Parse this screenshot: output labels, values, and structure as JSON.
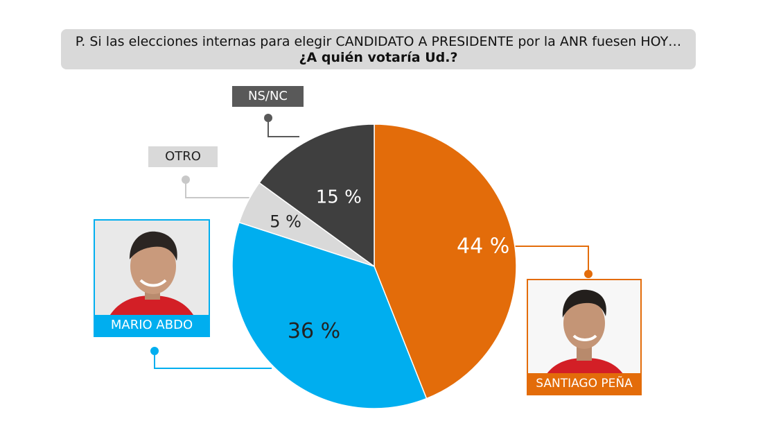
{
  "question": {
    "line1": "P. Si las elecciones internas para elegir CANDIDATO A PRESIDENTE por la ANR fuesen HOY…",
    "line2": "¿A quién votaría Ud.?"
  },
  "candidates": {
    "abdo_name": "MARIO ABDO",
    "pena_name": "SANTIAGO PEÑA"
  },
  "chart_data": {
    "type": "pie",
    "title": "",
    "unit": "%",
    "slices": [
      {
        "label": "SANTIAGO PEÑA",
        "value": 44,
        "display": "44 %",
        "color": "#e36c0a"
      },
      {
        "label": "MARIO ABDO",
        "value": 36,
        "display": "36 %",
        "color": "#00aeef"
      },
      {
        "label": "OTRO",
        "value": 5,
        "display": "5 %",
        "color": "#d9d9d9"
      },
      {
        "label": "NS/NC",
        "value": 15,
        "display": "15 %",
        "color": "#3f3f3f"
      }
    ],
    "start": "12 o'clock",
    "direction": "clockwise"
  }
}
